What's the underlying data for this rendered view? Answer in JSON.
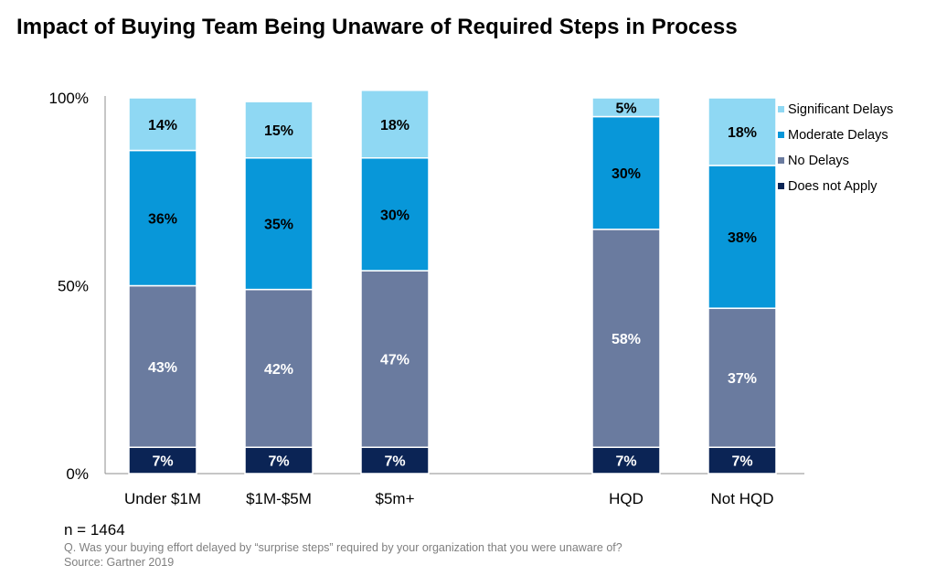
{
  "title": "Impact of Buying Team Being Unaware of Required Steps in Process",
  "footer": {
    "n": "n = 1464",
    "question": "Q. Was your buying effort delayed by “surprise steps” required by your organization that you were unaware of?",
    "source": "Source: Gartner 2019"
  },
  "chart_data": {
    "type": "bar",
    "stacked": true,
    "categories": [
      "Under $1M",
      "$1M-$5M",
      "$5m+",
      "HQD",
      "Not HQD"
    ],
    "series": [
      {
        "name": "Does not Apply",
        "color": "#0b2455",
        "values": [
          7,
          7,
          7,
          7,
          7
        ]
      },
      {
        "name": "No Delays",
        "color": "#6a7b9f",
        "values": [
          43,
          42,
          47,
          58,
          37
        ]
      },
      {
        "name": "Moderate Delays",
        "color": "#0897d9",
        "values": [
          36,
          35,
          30,
          30,
          38
        ]
      },
      {
        "name": "Significant Delays",
        "color": "#8fd8f3",
        "values": [
          14,
          15,
          18,
          5,
          18
        ]
      }
    ],
    "label_colors": {
      "Does not Apply": "#ffffff",
      "No Delays": "#ffffff",
      "Moderate Delays": "#000000",
      "Significant Delays": "#000000"
    },
    "yticks": [
      "0%",
      "50%",
      "100%"
    ],
    "ylim": [
      0,
      100
    ],
    "legend_position": "top-right",
    "legend_order": [
      "Significant Delays",
      "Moderate Delays",
      "No Delays",
      "Does not Apply"
    ]
  }
}
